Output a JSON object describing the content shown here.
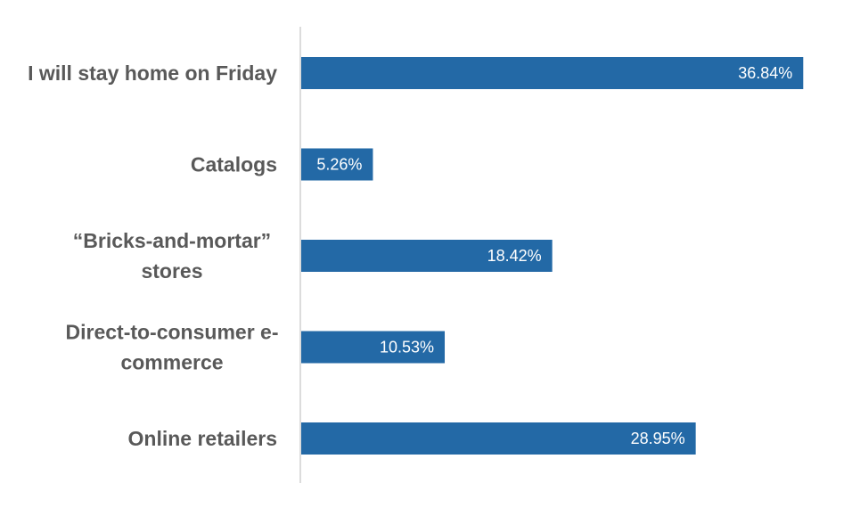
{
  "chart_data": {
    "type": "bar",
    "orientation": "horizontal",
    "title": "",
    "xlabel": "",
    "ylabel": "",
    "categories": [
      "I will stay home on Friday",
      "Catalogs",
      "“Bricks-and-mortar” stores",
      "Direct-to-consumer e-commerce",
      "Online retailers"
    ],
    "category_label_lines": [
      [
        "I will stay home on Friday"
      ],
      [
        "Catalogs"
      ],
      [
        "“Bricks-and-mortar”",
        "stores"
      ],
      [
        "Direct-to-consumer e-",
        "commerce"
      ],
      [
        "Online retailers"
      ]
    ],
    "values": [
      36.84,
      5.26,
      18.42,
      10.53,
      28.95
    ],
    "data_labels": [
      "36.84%",
      "5.26%",
      "18.42%",
      "10.53%",
      "28.95%"
    ],
    "xlim": [
      0,
      40
    ],
    "grid": false,
    "legend": "none",
    "bar_color": "#2369A6"
  }
}
